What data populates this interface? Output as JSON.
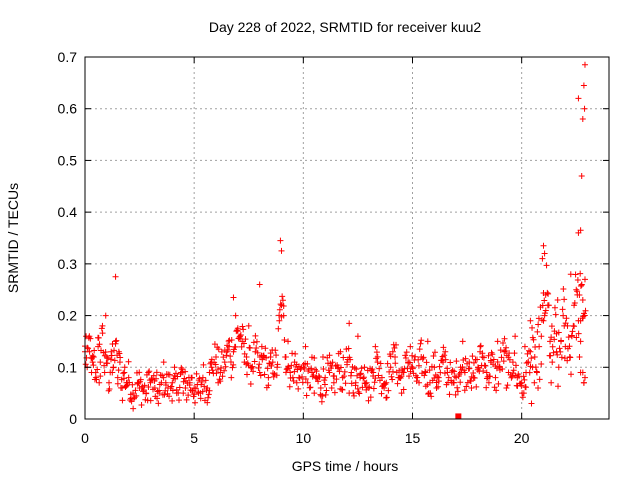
{
  "chart_data": {
    "type": "scatter",
    "title": "Day 228 of 2022, SRMTID for receiver kuu2",
    "xlabel": "GPS time / hours",
    "ylabel": "SRMTID / TECUs",
    "xlim": [
      0,
      24
    ],
    "ylim": [
      0,
      0.7
    ],
    "xticks": [
      0,
      5,
      10,
      15,
      20
    ],
    "yticks": [
      0,
      0.1,
      0.2,
      0.3,
      0.4,
      0.5,
      0.6,
      0.7
    ],
    "grid": true,
    "legend": "none",
    "marker": "plus",
    "color": "#ff0000",
    "series": [
      {
        "name": "SRMTID",
        "x": [
          0.0,
          0.1,
          0.2,
          0.3,
          0.4,
          0.5,
          0.6,
          0.7,
          0.8,
          0.9,
          1.0,
          1.1,
          1.2,
          1.3,
          1.4,
          1.5,
          1.6,
          1.7,
          1.8,
          1.9,
          2.0,
          2.2,
          2.4,
          2.6,
          2.8,
          3.0,
          3.2,
          3.4,
          3.6,
          3.8,
          4.0,
          4.2,
          4.4,
          4.6,
          4.8,
          5.0,
          5.2,
          5.4,
          5.6,
          5.8,
          6.0,
          6.2,
          6.4,
          6.6,
          6.8,
          7.0,
          7.2,
          7.4,
          7.6,
          7.8,
          8.0,
          8.2,
          8.4,
          8.6,
          8.8,
          8.9,
          9.0,
          9.1,
          9.2,
          9.4,
          9.6,
          9.8,
          10.0,
          10.2,
          10.4,
          10.6,
          10.8,
          11.0,
          11.2,
          11.4,
          11.6,
          11.8,
          12.0,
          12.2,
          12.4,
          12.6,
          12.8,
          13.0,
          13.2,
          13.4,
          13.6,
          13.8,
          14.0,
          14.2,
          14.4,
          14.6,
          14.8,
          15.0,
          15.2,
          15.4,
          15.6,
          15.8,
          16.0,
          16.2,
          16.4,
          16.6,
          16.8,
          17.0,
          17.2,
          17.4,
          17.6,
          17.8,
          18.0,
          18.2,
          18.4,
          18.6,
          18.8,
          19.0,
          19.2,
          19.4,
          19.6,
          19.8,
          20.0,
          20.1,
          20.2,
          20.3,
          20.4,
          20.5,
          20.6,
          20.7,
          20.8,
          20.9,
          21.0,
          21.1,
          21.2,
          21.3,
          21.4,
          21.5,
          21.6,
          21.7,
          21.8,
          21.9,
          22.0,
          22.1,
          22.2,
          22.3,
          22.4,
          22.5,
          22.6,
          22.7,
          22.8,
          22.9,
          0.05,
          0.35,
          0.65,
          0.95,
          1.25,
          1.55,
          2.1,
          2.5,
          2.9,
          3.3,
          3.7,
          4.1,
          4.5,
          4.9,
          5.3,
          5.7,
          6.1,
          6.5,
          6.7,
          6.9,
          7.1,
          7.3,
          7.5,
          8.1,
          8.5,
          9.3,
          9.7,
          10.1,
          10.5,
          10.9,
          11.3,
          11.7,
          12.1,
          12.5,
          12.9,
          13.3,
          13.7,
          14.1,
          14.5,
          14.9,
          15.3,
          15.7,
          16.1,
          16.5,
          16.9,
          17.3,
          17.7,
          18.1,
          18.5,
          18.9,
          19.3,
          19.7,
          20.15,
          20.45,
          20.75,
          21.05,
          21.35,
          21.65,
          21.95,
          22.25,
          22.55,
          22.75,
          22.85,
          22.65,
          22.7,
          22.8,
          22.85,
          22.9,
          22.6,
          22.7,
          1.4,
          8.95,
          9.0,
          8.0,
          6.8,
          12.1,
          21.0,
          21.05,
          20.95,
          20.4,
          22.75,
          22.8,
          22.6,
          22.7,
          22.85,
          17.1
        ],
        "y": [
          0.13,
          0.1,
          0.16,
          0.09,
          0.12,
          0.08,
          0.14,
          0.11,
          0.18,
          0.09,
          0.12,
          0.07,
          0.13,
          0.1,
          0.15,
          0.08,
          0.11,
          0.06,
          0.09,
          0.07,
          0.08,
          0.05,
          0.07,
          0.06,
          0.05,
          0.07,
          0.06,
          0.05,
          0.08,
          0.06,
          0.07,
          0.05,
          0.09,
          0.06,
          0.07,
          0.06,
          0.05,
          0.08,
          0.06,
          0.1,
          0.12,
          0.09,
          0.11,
          0.14,
          0.13,
          0.17,
          0.15,
          0.12,
          0.1,
          0.13,
          0.09,
          0.12,
          0.08,
          0.11,
          0.1,
          0.19,
          0.22,
          0.2,
          0.12,
          0.09,
          0.11,
          0.08,
          0.1,
          0.07,
          0.09,
          0.08,
          0.06,
          0.08,
          0.09,
          0.07,
          0.1,
          0.08,
          0.11,
          0.09,
          0.07,
          0.08,
          0.1,
          0.06,
          0.09,
          0.11,
          0.08,
          0.07,
          0.1,
          0.12,
          0.08,
          0.09,
          0.11,
          0.1,
          0.08,
          0.12,
          0.09,
          0.07,
          0.1,
          0.08,
          0.11,
          0.09,
          0.07,
          0.08,
          0.1,
          0.09,
          0.11,
          0.08,
          0.1,
          0.12,
          0.09,
          0.11,
          0.08,
          0.1,
          0.13,
          0.09,
          0.11,
          0.08,
          0.07,
          0.05,
          0.09,
          0.11,
          0.13,
          0.1,
          0.12,
          0.09,
          0.14,
          0.16,
          0.19,
          0.24,
          0.22,
          0.15,
          0.11,
          0.17,
          0.13,
          0.1,
          0.15,
          0.2,
          0.14,
          0.18,
          0.12,
          0.16,
          0.22,
          0.25,
          0.19,
          0.15,
          0.09,
          0.08,
          0.16,
          0.11,
          0.07,
          0.2,
          0.09,
          0.13,
          0.04,
          0.06,
          0.09,
          0.04,
          0.07,
          0.1,
          0.05,
          0.08,
          0.04,
          0.09,
          0.07,
          0.13,
          0.08,
          0.2,
          0.16,
          0.11,
          0.18,
          0.14,
          0.12,
          0.15,
          0.07,
          0.14,
          0.05,
          0.12,
          0.06,
          0.13,
          0.05,
          0.16,
          0.07,
          0.14,
          0.06,
          0.13,
          0.05,
          0.14,
          0.07,
          0.15,
          0.06,
          0.13,
          0.07,
          0.15,
          0.06,
          0.14,
          0.07,
          0.15,
          0.06,
          0.16,
          0.14,
          0.03,
          0.06,
          0.2,
          0.07,
          0.23,
          0.18,
          0.28,
          0.24,
          0.26,
          0.07,
          0.12,
          0.19,
          0.23,
          0.07,
          0.27,
          0.36,
          0.09,
          0.275,
          0.345,
          0.325,
          0.26,
          0.235,
          0.185,
          0.335,
          0.32,
          0.31,
          0.19,
          0.47,
          0.58,
          0.62,
          0.365,
          0.645,
          0.005
        ],
        "y2_top": [
          0.6,
          0.685
        ]
      }
    ]
  }
}
